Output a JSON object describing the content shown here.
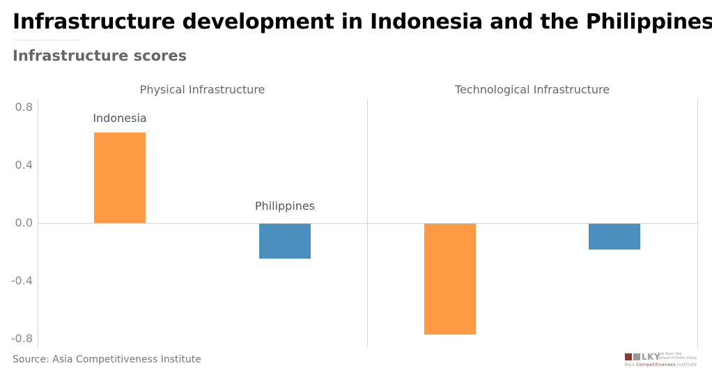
{
  "header": {
    "title": "Infrastructure development in Indonesia and the Philippines",
    "subtitle": "Infrastructure scores"
  },
  "footer": {
    "source": "Source: Asia Competitiveness Institute",
    "logo": {
      "mark": "LKY",
      "school_line1": "Lee Kuan Yew",
      "school_line2": "School of Public Policy",
      "institute_prefix": "Asia ",
      "institute_accent": "Competitiveness",
      "institute_suffix": " Institute",
      "brand_color": "#8b3a34"
    }
  },
  "chart_data": {
    "type": "bar",
    "title": "Infrastructure development in Indonesia and the Philippines",
    "subtitle": "Infrastructure scores",
    "panels": [
      "Physical Infrastructure",
      "Technological Infrastructure"
    ],
    "categories": [
      "Indonesia",
      "Philippines"
    ],
    "series": [
      {
        "name": "Physical Infrastructure",
        "values": [
          0.63,
          -0.24
        ]
      },
      {
        "name": "Technological Infrastructure",
        "values": [
          -0.77,
          -0.18
        ]
      }
    ],
    "colors": {
      "Indonesia": "#fd9a43",
      "Philippines": "#4a8fbe"
    },
    "yticks": [
      "0.8",
      "0.4",
      "0.0",
      "-0.4",
      "-0.8"
    ],
    "ylim": [
      -0.8,
      0.8
    ],
    "xlabel": "",
    "ylabel": "",
    "grid": false,
    "legend": "direct labels on first panel",
    "source": "Source: Asia Competitiveness Institute"
  }
}
